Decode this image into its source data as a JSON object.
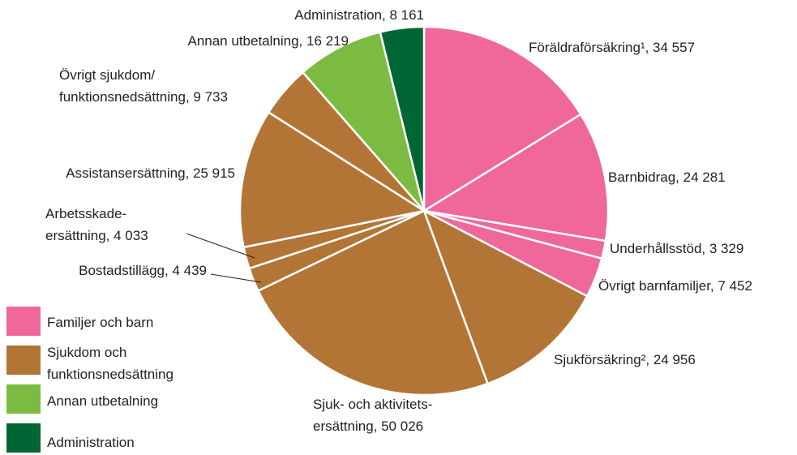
{
  "chart_data": {
    "type": "pie",
    "values": [
      34557,
      24281,
      3329,
      7452,
      24956,
      50026,
      4439,
      4033,
      25915,
      9733,
      16219,
      8161
    ],
    "value_labels": [
      "Föräldraförsäkring¹, 34 557",
      "Barnbidrag, 24 281",
      "Underhållsstöd, 3 329",
      "Övrigt barnfamiljer, 7 452",
      "Sjukförsäkring², 24 956",
      "Sjuk- och aktivitets-\nersättning, 50 026",
      "Bostadstillägg, 4 439",
      "Arbetsskade-\nersättning, 4 033",
      "Assistansersättning, 25 915",
      "Övrigt sjukdom/\nfunktionsnedsättning, 9 733",
      "Annan utbetalning, 16 219",
      "Administration, 8 161"
    ],
    "colors": [
      "#f0679b",
      "#f0679b",
      "#f0679b",
      "#f0679b",
      "#b27535",
      "#b27535",
      "#b27535",
      "#b27535",
      "#b27535",
      "#b27535",
      "#7bbb42",
      "#006633"
    ],
    "legend": [
      {
        "name": "Familjer och barn",
        "color": "#f0679b"
      },
      {
        "name": "Sjukdom och\nfunktionsnedsättning",
        "color": "#b27535"
      },
      {
        "name": "Annan utbetalning",
        "color": "#7bbb42"
      },
      {
        "name": "Administration",
        "color": "#006633"
      }
    ]
  }
}
